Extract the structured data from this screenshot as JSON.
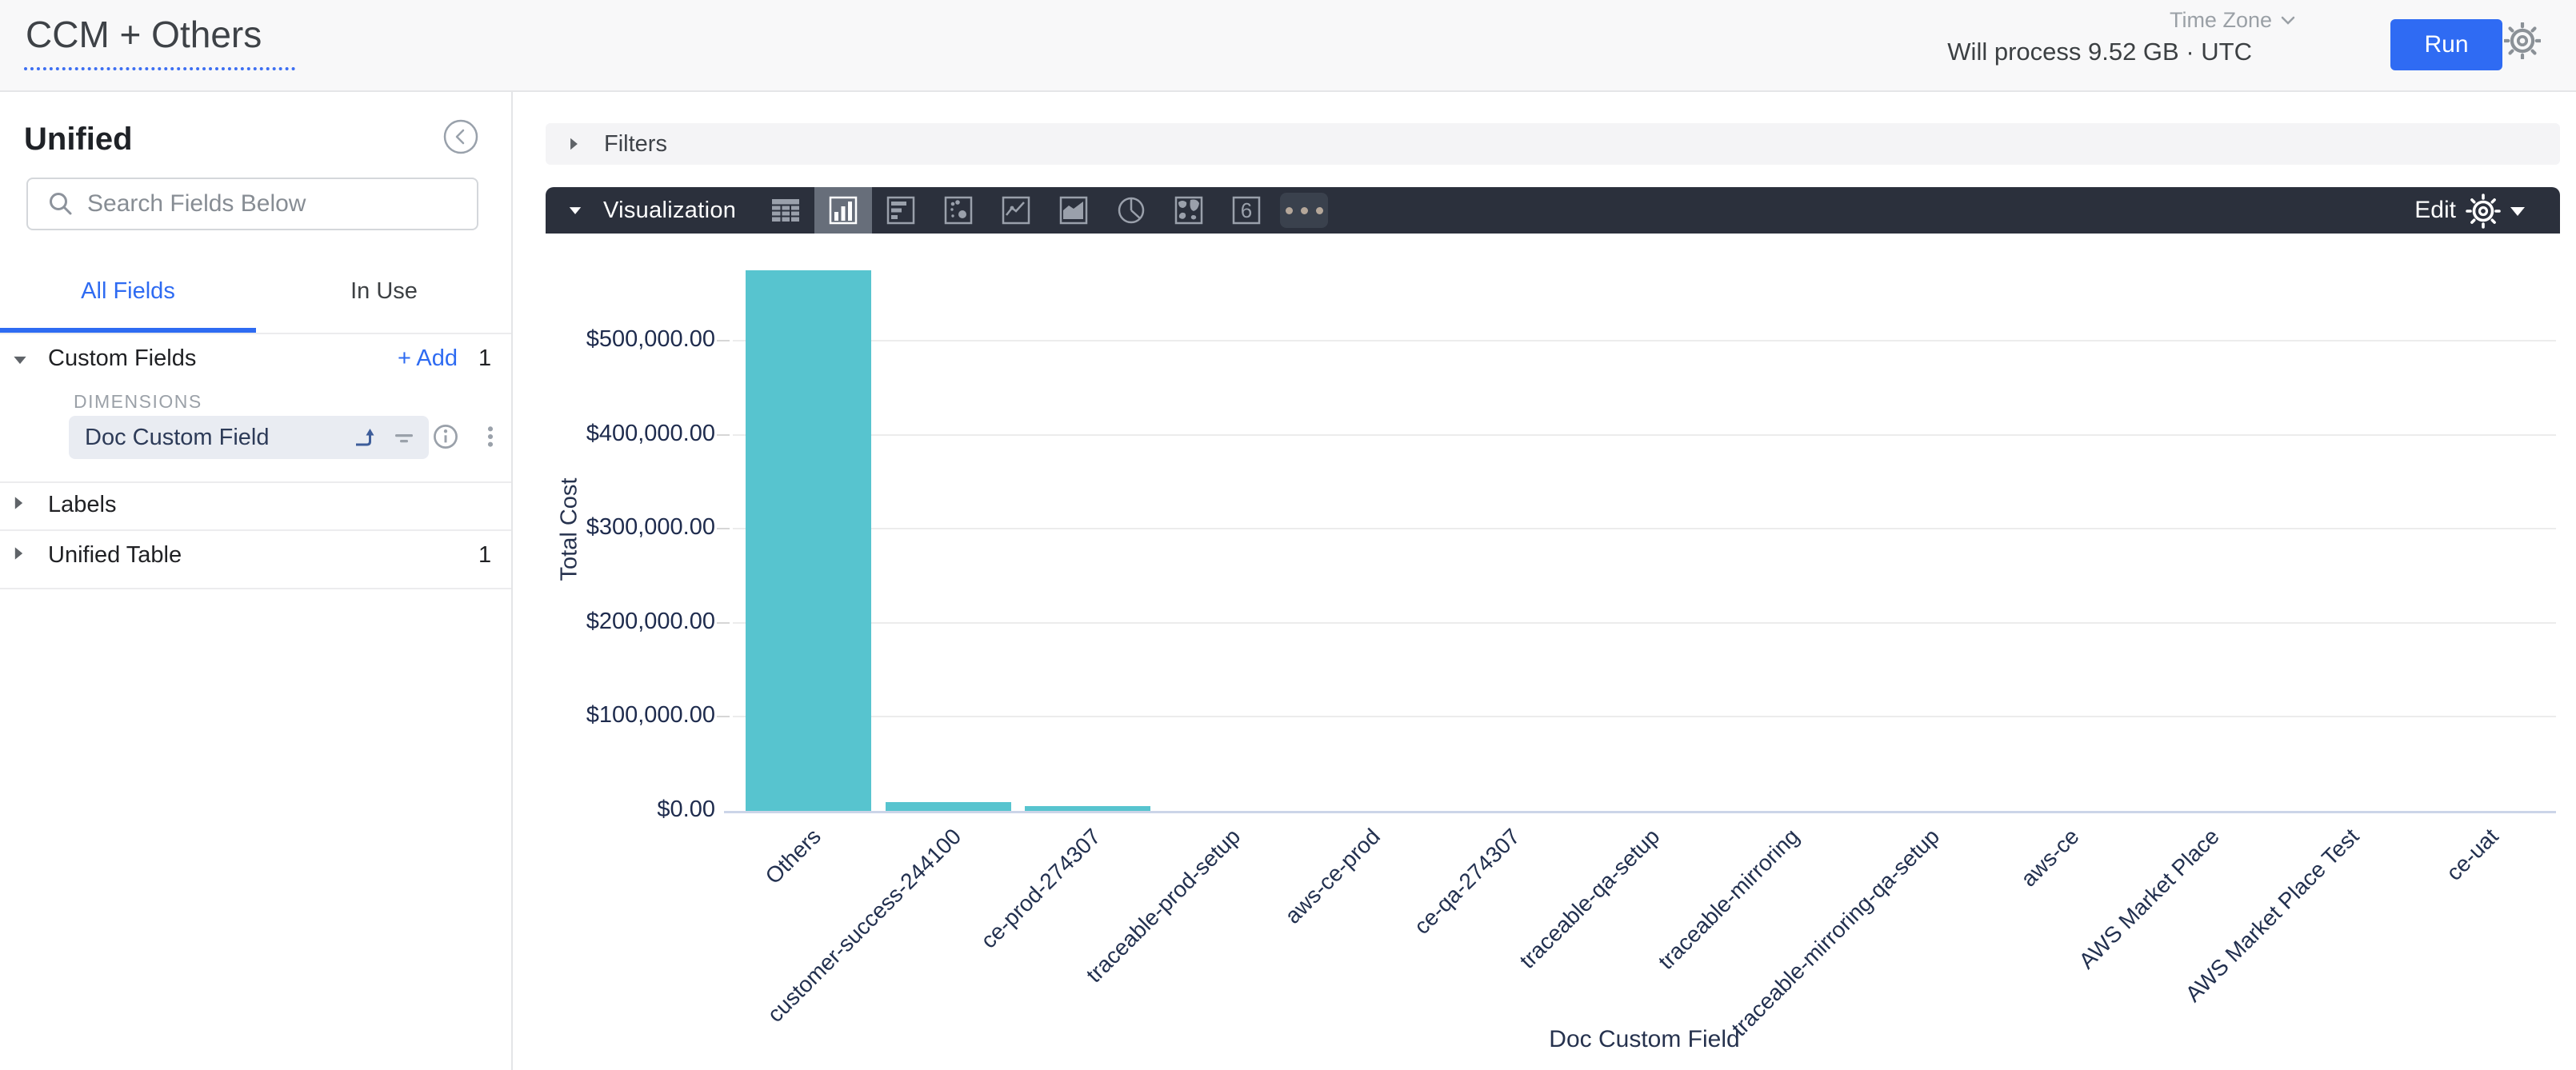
{
  "header": {
    "title": "CCM + Others",
    "timezone_label": "Time Zone",
    "process_info": "Will process 9.52 GB · UTC",
    "run_label": "Run"
  },
  "sidebar": {
    "view_name": "Unified",
    "search_placeholder": "Search Fields Below",
    "tabs": [
      {
        "label": "All Fields",
        "active": true
      },
      {
        "label": "In Use",
        "active": false
      }
    ],
    "sections": [
      {
        "label": "Custom Fields",
        "expanded": true,
        "add_label": "+ Add",
        "count": "1",
        "group_label": "DIMENSIONS",
        "fields": [
          {
            "name": "Doc Custom Field",
            "selected": true
          }
        ]
      },
      {
        "label": "Labels",
        "expanded": false
      },
      {
        "label": "Unified Table",
        "expanded": false,
        "count": "1"
      }
    ]
  },
  "filters": {
    "label": "Filters"
  },
  "viz": {
    "label": "Visualization",
    "edit_label": "Edit",
    "selected_type": "column",
    "chart_types": [
      "table",
      "column",
      "bar",
      "scatter",
      "line",
      "area",
      "pie",
      "map",
      "single-value",
      "more"
    ]
  },
  "colors": {
    "accent_blue": "#2e6bf2",
    "run_button": "#2f6bf3",
    "bar_teal": "#57c4cf",
    "toolbar_dark": "#2b303c"
  },
  "chart_data": {
    "type": "bar",
    "title": "",
    "xlabel": "Doc Custom Field",
    "ylabel": "Total Cost",
    "categories": [
      "Others",
      "customer-success-244100",
      "ce-prod-274307",
      "traceable-prod-setup",
      "aws-ce-prod",
      "ce-qa-274307",
      "traceable-qa-setup",
      "traceable-mirroring",
      "traceable-mirroring-qa-setup",
      "aws-ce",
      "AWS Market Place",
      "AWS Market Place Test",
      "ce-uat"
    ],
    "values": [
      575000,
      9400,
      5100,
      0,
      0,
      0,
      0,
      0,
      0,
      0,
      0,
      0,
      0
    ],
    "ylim": [
      0,
      500000
    ],
    "ytick_values": [
      0,
      100000,
      200000,
      300000,
      400000,
      500000
    ],
    "ytick_labels": [
      "$0.00",
      "$100,000.00",
      "$200,000.00",
      "$300,000.00",
      "$400,000.00",
      "$500,000.00"
    ],
    "grid": true,
    "legend": false,
    "bar_color": "#57c4cf"
  }
}
